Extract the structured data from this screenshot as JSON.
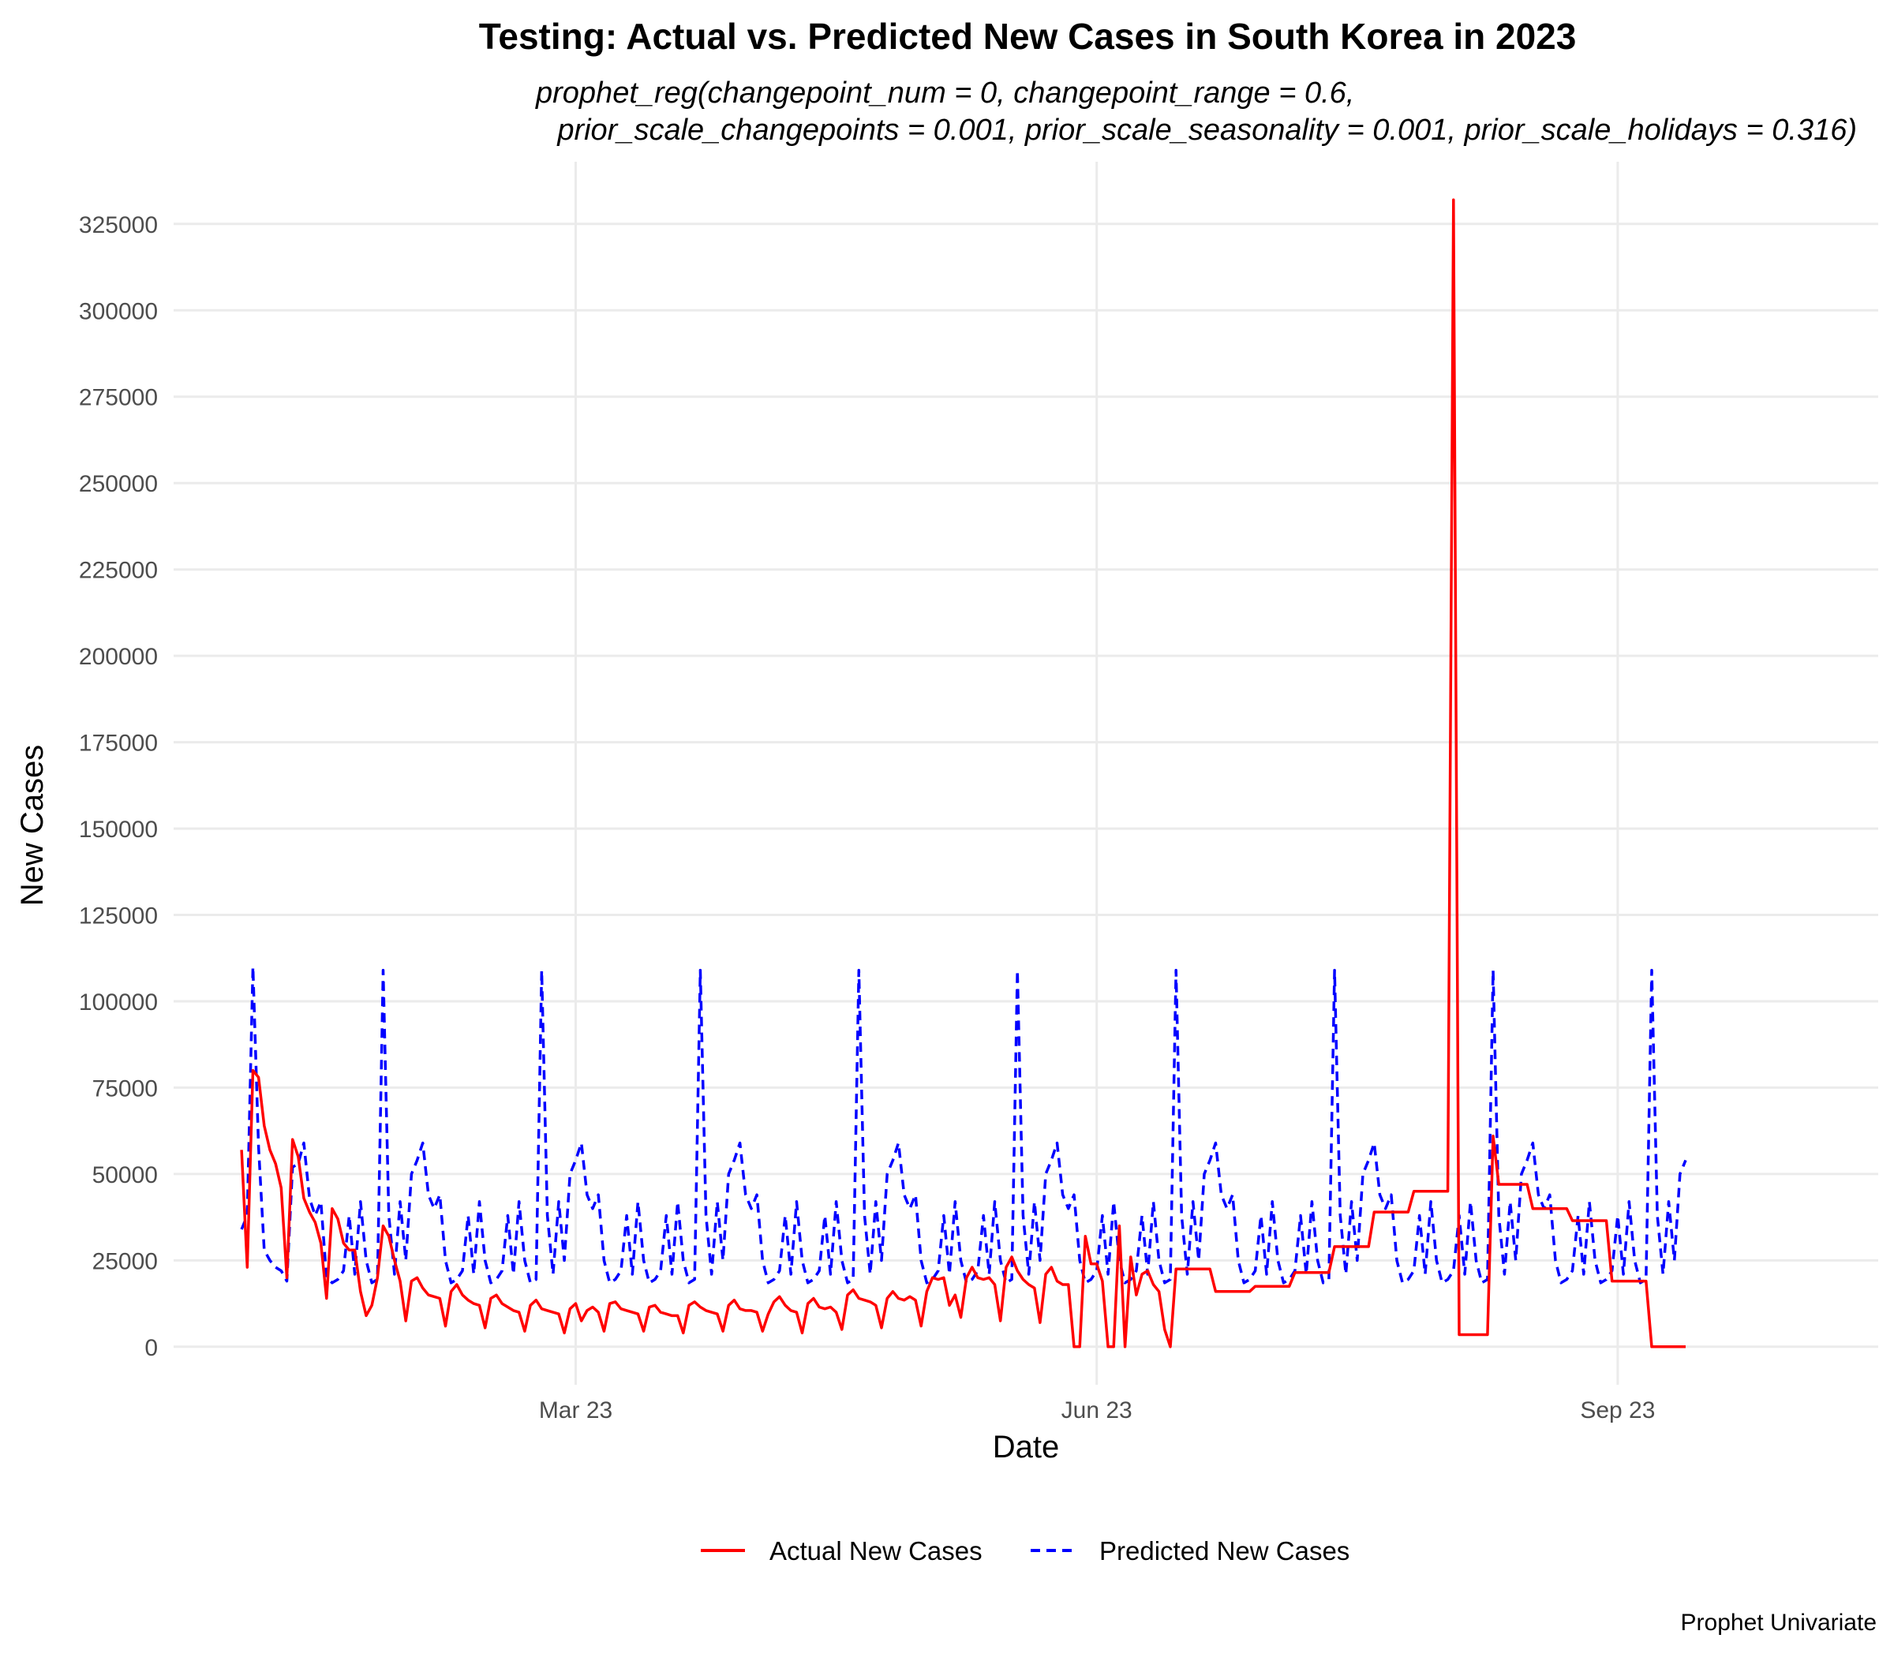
{
  "chart_data": {
    "type": "line",
    "title": "Testing: Actual vs. Predicted New Cases in South Korea in 2023",
    "subtitle_lines": [
      "prophet_reg(changepoint_num = 0, changepoint_range = 0.6,",
      "prior_scale_changepoints = 0.001, prior_scale_seasonality = 0.001, prior_scale_holidays = 0.316)"
    ],
    "xlabel": "Date",
    "ylabel": "New Cases",
    "caption": "Prophet Univariate",
    "x_ticks": [
      {
        "date": "2023-03-01",
        "label": "Mar 23"
      },
      {
        "date": "2023-06-01",
        "label": "Jun 23"
      },
      {
        "date": "2023-09-01",
        "label": "Sep 23"
      }
    ],
    "x_range": [
      "2022-12-20",
      "2023-10-17"
    ],
    "ylim": [
      -11000,
      343000
    ],
    "y_ticks": [
      0,
      25000,
      50000,
      75000,
      100000,
      125000,
      150000,
      175000,
      200000,
      225000,
      250000,
      275000,
      300000,
      325000
    ],
    "grid": true,
    "legend_position": "bottom",
    "colors": {
      "actual": "#ff0000",
      "predicted": "#0000ff"
    },
    "series": [
      {
        "name": "Actual New Cases",
        "key": "actual",
        "style": "solid",
        "points": [
          [
            "2023-01-01",
            57000
          ],
          [
            "2023-01-02",
            23000
          ],
          [
            "2023-01-03",
            80000
          ],
          [
            "2023-01-04",
            78000
          ],
          [
            "2023-01-05",
            64000
          ],
          [
            "2023-01-06",
            57000
          ],
          [
            "2023-01-07",
            53000
          ],
          [
            "2023-01-08",
            46000
          ],
          [
            "2023-01-09",
            20000
          ],
          [
            "2023-01-10",
            60000
          ],
          [
            "2023-01-11",
            55000
          ],
          [
            "2023-01-12",
            43000
          ],
          [
            "2023-01-13",
            39000
          ],
          [
            "2023-01-14",
            36000
          ],
          [
            "2023-01-15",
            30000
          ],
          [
            "2023-01-16",
            14000
          ],
          [
            "2023-01-17",
            40000
          ],
          [
            "2023-01-18",
            37000
          ],
          [
            "2023-01-19",
            30000
          ],
          [
            "2023-01-20",
            28000
          ],
          [
            "2023-01-21",
            28000
          ],
          [
            "2023-01-22",
            16000
          ],
          [
            "2023-01-23",
            9000
          ],
          [
            "2023-01-24",
            12000
          ],
          [
            "2023-01-25",
            20000
          ],
          [
            "2023-01-26",
            35000
          ],
          [
            "2023-01-27",
            32000
          ],
          [
            "2023-01-28",
            25000
          ],
          [
            "2023-01-29",
            19000
          ],
          [
            "2023-01-30",
            7500
          ],
          [
            "2023-01-31",
            19000
          ],
          [
            "2023-02-01",
            20000
          ],
          [
            "2023-02-02",
            17000
          ],
          [
            "2023-02-03",
            15000
          ],
          [
            "2023-02-04",
            14500
          ],
          [
            "2023-02-05",
            14000
          ],
          [
            "2023-02-06",
            6000
          ],
          [
            "2023-02-07",
            16000
          ],
          [
            "2023-02-08",
            18000
          ],
          [
            "2023-02-09",
            15000
          ],
          [
            "2023-02-10",
            13500
          ],
          [
            "2023-02-11",
            12500
          ],
          [
            "2023-02-12",
            12000
          ],
          [
            "2023-02-13",
            5500
          ],
          [
            "2023-02-14",
            14000
          ],
          [
            "2023-02-15",
            15000
          ],
          [
            "2023-02-16",
            12500
          ],
          [
            "2023-02-17",
            11500
          ],
          [
            "2023-02-18",
            10500
          ],
          [
            "2023-02-19",
            10000
          ],
          [
            "2023-02-20",
            4500
          ],
          [
            "2023-02-21",
            12000
          ],
          [
            "2023-02-22",
            13500
          ],
          [
            "2023-02-23",
            11000
          ],
          [
            "2023-02-24",
            10500
          ],
          [
            "2023-02-25",
            10000
          ],
          [
            "2023-02-26",
            9500
          ],
          [
            "2023-02-27",
            4000
          ],
          [
            "2023-02-28",
            11000
          ],
          [
            "2023-03-01",
            12500
          ],
          [
            "2023-03-02",
            7500
          ],
          [
            "2023-03-03",
            10500
          ],
          [
            "2023-03-04",
            11500
          ],
          [
            "2023-03-05",
            10000
          ],
          [
            "2023-03-06",
            4500
          ],
          [
            "2023-03-07",
            12500
          ],
          [
            "2023-03-08",
            13000
          ],
          [
            "2023-03-09",
            11000
          ],
          [
            "2023-03-10",
            10500
          ],
          [
            "2023-03-11",
            10000
          ],
          [
            "2023-03-12",
            9500
          ],
          [
            "2023-03-13",
            4500
          ],
          [
            "2023-03-14",
            11500
          ],
          [
            "2023-03-15",
            12000
          ],
          [
            "2023-03-16",
            10000
          ],
          [
            "2023-03-17",
            9500
          ],
          [
            "2023-03-18",
            9000
          ],
          [
            "2023-03-19",
            9000
          ],
          [
            "2023-03-20",
            4000
          ],
          [
            "2023-03-21",
            12000
          ],
          [
            "2023-03-22",
            13000
          ],
          [
            "2023-03-23",
            11500
          ],
          [
            "2023-03-24",
            10500
          ],
          [
            "2023-03-25",
            10000
          ],
          [
            "2023-03-26",
            9500
          ],
          [
            "2023-03-27",
            4500
          ],
          [
            "2023-03-28",
            12000
          ],
          [
            "2023-03-29",
            13500
          ],
          [
            "2023-03-30",
            11000
          ],
          [
            "2023-03-31",
            10500
          ],
          [
            "2023-04-01",
            10500
          ],
          [
            "2023-04-02",
            10000
          ],
          [
            "2023-04-03",
            4500
          ],
          [
            "2023-04-04",
            9500
          ],
          [
            "2023-04-05",
            13000
          ],
          [
            "2023-04-06",
            14500
          ],
          [
            "2023-04-07",
            12000
          ],
          [
            "2023-04-08",
            10500
          ],
          [
            "2023-04-09",
            10000
          ],
          [
            "2023-04-10",
            4000
          ],
          [
            "2023-04-11",
            12500
          ],
          [
            "2023-04-12",
            14000
          ],
          [
            "2023-04-13",
            11500
          ],
          [
            "2023-04-14",
            11000
          ],
          [
            "2023-04-15",
            11500
          ],
          [
            "2023-04-16",
            10000
          ],
          [
            "2023-04-17",
            5000
          ],
          [
            "2023-04-18",
            15000
          ],
          [
            "2023-04-19",
            16500
          ],
          [
            "2023-04-20",
            14000
          ],
          [
            "2023-04-21",
            13500
          ],
          [
            "2023-04-22",
            13000
          ],
          [
            "2023-04-23",
            12000
          ],
          [
            "2023-04-24",
            5500
          ],
          [
            "2023-04-25",
            14000
          ],
          [
            "2023-04-26",
            16000
          ],
          [
            "2023-04-27",
            14000
          ],
          [
            "2023-04-28",
            13500
          ],
          [
            "2023-04-29",
            14500
          ],
          [
            "2023-04-30",
            13500
          ],
          [
            "2023-05-01",
            6000
          ],
          [
            "2023-05-02",
            16000
          ],
          [
            "2023-05-03",
            20000
          ],
          [
            "2023-05-04",
            19500
          ],
          [
            "2023-05-05",
            20000
          ],
          [
            "2023-05-06",
            12000
          ],
          [
            "2023-05-07",
            15000
          ],
          [
            "2023-05-08",
            8500
          ],
          [
            "2023-05-09",
            20000
          ],
          [
            "2023-05-10",
            23000
          ],
          [
            "2023-05-11",
            20000
          ],
          [
            "2023-05-12",
            19500
          ],
          [
            "2023-05-13",
            20000
          ],
          [
            "2023-05-14",
            18000
          ],
          [
            "2023-05-15",
            7500
          ],
          [
            "2023-05-16",
            23000
          ],
          [
            "2023-05-17",
            26000
          ],
          [
            "2023-05-18",
            22000
          ],
          [
            "2023-05-19",
            19500
          ],
          [
            "2023-05-20",
            18000
          ],
          [
            "2023-05-21",
            17000
          ],
          [
            "2023-05-22",
            7000
          ],
          [
            "2023-05-23",
            21000
          ],
          [
            "2023-05-24",
            23000
          ],
          [
            "2023-05-25",
            19000
          ],
          [
            "2023-05-26",
            18000
          ],
          [
            "2023-05-27",
            18000
          ],
          [
            "2023-05-28",
            0
          ],
          [
            "2023-05-29",
            0
          ],
          [
            "2023-05-30",
            32000
          ],
          [
            "2023-05-31",
            24000
          ],
          [
            "2023-06-01",
            24000
          ],
          [
            "2023-06-02",
            19000
          ],
          [
            "2023-06-03",
            0
          ],
          [
            "2023-06-04",
            0
          ],
          [
            "2023-06-05",
            35000
          ],
          [
            "2023-06-06",
            0
          ],
          [
            "2023-06-07",
            26000
          ],
          [
            "2023-06-08",
            15000
          ],
          [
            "2023-06-09",
            21000
          ],
          [
            "2023-06-10",
            22000
          ],
          [
            "2023-06-11",
            18000
          ],
          [
            "2023-06-12",
            16000
          ],
          [
            "2023-06-13",
            5000
          ],
          [
            "2023-06-14",
            0
          ],
          [
            "2023-06-15",
            22500
          ],
          [
            "2023-06-21",
            22500
          ],
          [
            "2023-06-22",
            16000
          ],
          [
            "2023-06-28",
            16000
          ],
          [
            "2023-06-29",
            17500
          ],
          [
            "2023-07-05",
            17500
          ],
          [
            "2023-07-06",
            21500
          ],
          [
            "2023-07-12",
            21500
          ],
          [
            "2023-07-13",
            29000
          ],
          [
            "2023-07-19",
            29000
          ],
          [
            "2023-07-20",
            39000
          ],
          [
            "2023-07-26",
            39000
          ],
          [
            "2023-07-27",
            45000
          ],
          [
            "2023-08-02",
            45000
          ],
          [
            "2023-08-03",
            332000
          ],
          [
            "2023-08-04",
            3500
          ],
          [
            "2023-08-09",
            3500
          ],
          [
            "2023-08-10",
            61000
          ],
          [
            "2023-08-11",
            47000
          ],
          [
            "2023-08-16",
            47000
          ],
          [
            "2023-08-17",
            40000
          ],
          [
            "2023-08-23",
            40000
          ],
          [
            "2023-08-24",
            36500
          ],
          [
            "2023-08-30",
            36500
          ],
          [
            "2023-08-31",
            19000
          ],
          [
            "2023-09-06",
            19000
          ],
          [
            "2023-09-07",
            0
          ],
          [
            "2023-09-13",
            0
          ]
        ]
      },
      {
        "name": "Predicted New Cases",
        "key": "predicted",
        "style": "dashed",
        "base_points": [
          [
            "2023-01-01",
            34000
          ],
          [
            "2023-01-02",
            38000
          ],
          [
            "2023-01-03",
            110000
          ],
          [
            "2023-01-04",
            58000
          ],
          [
            "2023-01-05",
            28000
          ],
          [
            "2023-01-06",
            25000
          ],
          [
            "2023-01-07",
            23000
          ],
          [
            "2023-01-08",
            22000
          ],
          [
            "2023-01-09",
            19000
          ],
          [
            "2023-01-10",
            52000
          ],
          [
            "2023-01-11",
            53000
          ],
          [
            "2023-01-12",
            59000
          ],
          [
            "2023-01-13",
            43000
          ],
          [
            "2023-01-14",
            38000
          ],
          [
            "2023-01-15",
            42000
          ],
          [
            "2023-01-16",
            20000
          ]
        ],
        "repeat_days": 7,
        "repeat_cycle": [
          18500,
          19500,
          22000,
          38000,
          21000,
          42000,
          25000
        ],
        "repeat_from": "2023-01-17",
        "repeat_to": "2023-09-13",
        "spike_anchor": "2023-01-26",
        "spike_value": 109000,
        "spike_interval_days": 28,
        "hump_anchor": "2023-01-31",
        "hump_values": [
          50000,
          54000,
          59000,
          44000,
          40000,
          44000,
          25000
        ]
      }
    ]
  }
}
